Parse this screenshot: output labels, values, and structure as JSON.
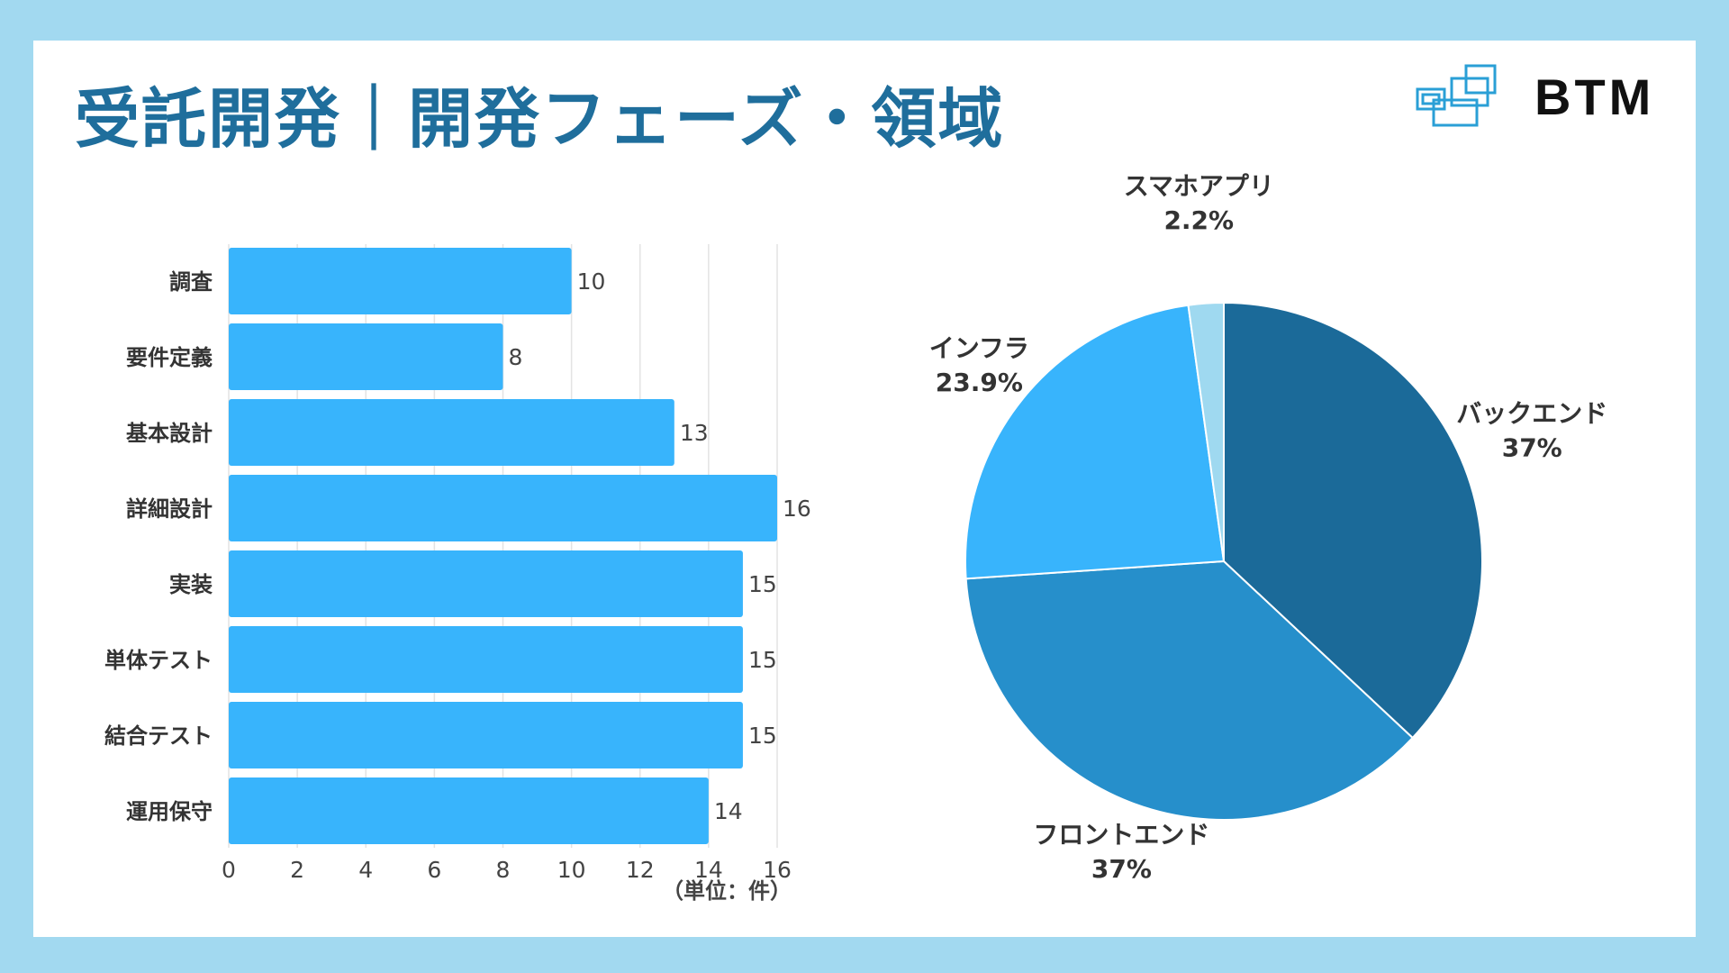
{
  "page": {
    "title": "受託開発｜開発フェーズ・領域",
    "logo_text": "BTM"
  },
  "colors": {
    "background": "#a2d9f0",
    "title": "#1f6e9c",
    "bar": "#38b4fc",
    "pie": [
      "#1b6a99",
      "#268fcb",
      "#38b4fc",
      "#9fd9f0"
    ]
  },
  "chart_data": [
    {
      "type": "bar",
      "orientation": "horizontal",
      "categories": [
        "調査",
        "要件定義",
        "基本設計",
        "詳細設計",
        "実装",
        "単体テスト",
        "結合テスト",
        "運用保守"
      ],
      "values": [
        10,
        8,
        13,
        16,
        15,
        15,
        15,
        14
      ],
      "xlim": [
        0,
        16
      ],
      "xticks": [
        0,
        2,
        4,
        6,
        8,
        10,
        12,
        14,
        16
      ],
      "unit_label": "（単位：件）",
      "grid": true
    },
    {
      "type": "pie",
      "slices": [
        {
          "label": "バックエンド",
          "value": 37,
          "value_label": "37%"
        },
        {
          "label": "フロントエンド",
          "value": 37,
          "value_label": "37%"
        },
        {
          "label": "インフラ",
          "value": 23.9,
          "value_label": "23.9%"
        },
        {
          "label": "スマホアプリ",
          "value": 2.2,
          "value_label": "2.2%"
        }
      ]
    }
  ]
}
